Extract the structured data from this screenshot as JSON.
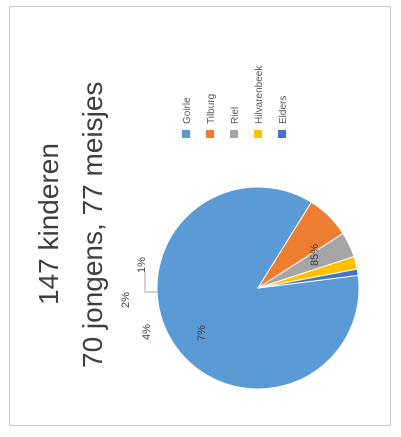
{
  "chart_data": {
    "type": "pie",
    "title": "147 kinderen",
    "subtitle": "70 jongens, 77 meisjes",
    "categories": [
      "Goirle",
      "Tilburg",
      "Riel",
      "Hilvarenbeek",
      "Elders"
    ],
    "values": [
      85,
      7,
      4,
      2,
      1
    ],
    "data_labels": [
      "85%",
      "7%",
      "4%",
      "2%",
      "1%"
    ],
    "colors": [
      "#5b9bd5",
      "#ed7d31",
      "#a5a5a5",
      "#ffc000",
      "#4472c4"
    ],
    "legend_placement": "right",
    "orientation": "rotated-90-ccw"
  }
}
